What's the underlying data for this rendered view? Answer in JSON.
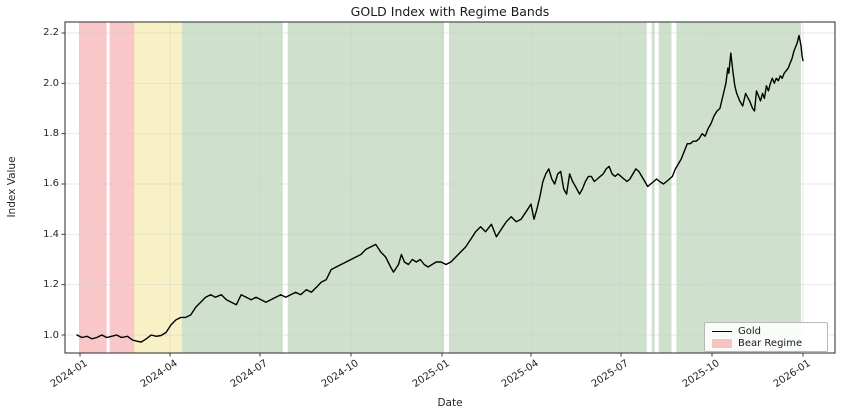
{
  "figure": {
    "title": "GOLD Index with Regime Bands",
    "xlabel": "Date",
    "ylabel": "Index Value"
  },
  "legend": {
    "items": [
      {
        "label": "Gold",
        "swatch": "line",
        "color": "#000000"
      },
      {
        "label": "Bear Regime",
        "swatch": "patch",
        "color": "#f6c2c2"
      }
    ]
  },
  "axes": {
    "x_tick_labels": [
      "2024-01",
      "2024-04",
      "2024-07",
      "2024-10",
      "2025-01",
      "2025-04",
      "2025-07",
      "2025-10",
      "2026-01"
    ],
    "y_tick_labels": [
      "1.0",
      "1.2",
      "1.4",
      "1.6",
      "1.8",
      "2.0",
      "2.2"
    ]
  },
  "colors": {
    "background": "#ffffff",
    "bear_band": "#f9c7c7",
    "neutral_band": "#f8f1c6",
    "bull_band": "#cfe1cd",
    "grid": "#c9c9c9",
    "spine": "#3d3d3d",
    "line": "#000000",
    "text": "#262626"
  },
  "chart_data": {
    "type": "line",
    "title": "GOLD Index with Regime Bands",
    "xlabel": "Date",
    "ylabel": "Index Value",
    "grid": true,
    "legend_position": "lower right",
    "xlim": [
      "2023-12-17",
      "2026-02-02"
    ],
    "ylim": [
      0.93,
      2.24
    ],
    "x_ticks": [
      "2024-01",
      "2024-04",
      "2024-07",
      "2024-10",
      "2025-01",
      "2025-04",
      "2025-07",
      "2025-10",
      "2026-01"
    ],
    "y_ticks": [
      1.0,
      1.2,
      1.4,
      1.6,
      1.8,
      2.0,
      2.2
    ],
    "regime_bands": [
      {
        "regime": "bear",
        "start": "2023-12-31",
        "end": "2024-01-28",
        "color": "#f9c7c7"
      },
      {
        "regime": "bear",
        "start": "2024-01-31",
        "end": "2024-02-25",
        "color": "#f9c7c7"
      },
      {
        "regime": "neutral",
        "start": "2024-02-25",
        "end": "2024-04-13",
        "color": "#f8f1c6"
      },
      {
        "regime": "bull",
        "start": "2024-04-13",
        "end": "2024-07-24",
        "color": "#cfe1cd"
      },
      {
        "regime": "bull",
        "start": "2024-07-29",
        "end": "2025-01-03",
        "color": "#cfe1cd"
      },
      {
        "regime": "bull",
        "start": "2025-01-08",
        "end": "2025-07-27",
        "color": "#cfe1cd"
      },
      {
        "regime": "bull",
        "start": "2025-08-01",
        "end": "2025-08-04",
        "color": "#cfe1cd"
      },
      {
        "regime": "bull",
        "start": "2025-08-08",
        "end": "2025-08-21",
        "color": "#cfe1cd"
      },
      {
        "regime": "bull",
        "start": "2025-08-26",
        "end": "2025-12-30",
        "color": "#cfe1cd"
      }
    ],
    "series": [
      {
        "name": "Gold",
        "color": "#000000",
        "points": [
          [
            "2023-12-29",
            1.0
          ],
          [
            "2024-01-03",
            0.99
          ],
          [
            "2024-01-08",
            0.995
          ],
          [
            "2024-01-13",
            0.985
          ],
          [
            "2024-01-18",
            0.99
          ],
          [
            "2024-01-23",
            1.0
          ],
          [
            "2024-01-28",
            0.99
          ],
          [
            "2024-02-02",
            0.995
          ],
          [
            "2024-02-07",
            1.0
          ],
          [
            "2024-02-12",
            0.99
          ],
          [
            "2024-02-18",
            0.995
          ],
          [
            "2024-02-23",
            0.98
          ],
          [
            "2024-02-28",
            0.975
          ],
          [
            "2024-03-03",
            0.972
          ],
          [
            "2024-03-08",
            0.985
          ],
          [
            "2024-03-13",
            1.0
          ],
          [
            "2024-03-18",
            0.995
          ],
          [
            "2024-03-23",
            0.998
          ],
          [
            "2024-03-28",
            1.01
          ],
          [
            "2024-04-02",
            1.04
          ],
          [
            "2024-04-07",
            1.06
          ],
          [
            "2024-04-12",
            1.07
          ],
          [
            "2024-04-17",
            1.07
          ],
          [
            "2024-04-22",
            1.08
          ],
          [
            "2024-04-27",
            1.11
          ],
          [
            "2024-05-02",
            1.13
          ],
          [
            "2024-05-07",
            1.15
          ],
          [
            "2024-05-12",
            1.16
          ],
          [
            "2024-05-17",
            1.15
          ],
          [
            "2024-05-23",
            1.16
          ],
          [
            "2024-05-28",
            1.14
          ],
          [
            "2024-06-02",
            1.13
          ],
          [
            "2024-06-07",
            1.12
          ],
          [
            "2024-06-12",
            1.16
          ],
          [
            "2024-06-17",
            1.15
          ],
          [
            "2024-06-22",
            1.14
          ],
          [
            "2024-06-27",
            1.15
          ],
          [
            "2024-07-02",
            1.14
          ],
          [
            "2024-07-07",
            1.13
          ],
          [
            "2024-07-12",
            1.14
          ],
          [
            "2024-07-17",
            1.15
          ],
          [
            "2024-07-22",
            1.16
          ],
          [
            "2024-07-27",
            1.15
          ],
          [
            "2024-08-01",
            1.16
          ],
          [
            "2024-08-06",
            1.17
          ],
          [
            "2024-08-11",
            1.16
          ],
          [
            "2024-08-17",
            1.18
          ],
          [
            "2024-08-22",
            1.17
          ],
          [
            "2024-08-27",
            1.19
          ],
          [
            "2024-09-01",
            1.21
          ],
          [
            "2024-09-06",
            1.22
          ],
          [
            "2024-09-11",
            1.26
          ],
          [
            "2024-09-16",
            1.27
          ],
          [
            "2024-09-21",
            1.28
          ],
          [
            "2024-09-26",
            1.29
          ],
          [
            "2024-10-01",
            1.3
          ],
          [
            "2024-10-06",
            1.31
          ],
          [
            "2024-10-11",
            1.32
          ],
          [
            "2024-10-16",
            1.34
          ],
          [
            "2024-10-21",
            1.35
          ],
          [
            "2024-10-26",
            1.36
          ],
          [
            "2024-10-31",
            1.33
          ],
          [
            "2024-11-05",
            1.31
          ],
          [
            "2024-11-10",
            1.27
          ],
          [
            "2024-11-13",
            1.25
          ],
          [
            "2024-11-18",
            1.28
          ],
          [
            "2024-11-21",
            1.32
          ],
          [
            "2024-11-24",
            1.29
          ],
          [
            "2024-11-28",
            1.28
          ],
          [
            "2024-12-02",
            1.3
          ],
          [
            "2024-12-06",
            1.29
          ],
          [
            "2024-12-10",
            1.3
          ],
          [
            "2024-12-14",
            1.28
          ],
          [
            "2024-12-18",
            1.27
          ],
          [
            "2024-12-22",
            1.28
          ],
          [
            "2024-12-26",
            1.29
          ],
          [
            "2024-12-31",
            1.29
          ],
          [
            "2025-01-05",
            1.28
          ],
          [
            "2025-01-10",
            1.29
          ],
          [
            "2025-01-15",
            1.31
          ],
          [
            "2025-01-20",
            1.33
          ],
          [
            "2025-01-25",
            1.35
          ],
          [
            "2025-01-30",
            1.38
          ],
          [
            "2025-02-04",
            1.41
          ],
          [
            "2025-02-09",
            1.43
          ],
          [
            "2025-02-14",
            1.41
          ],
          [
            "2025-02-20",
            1.44
          ],
          [
            "2025-02-25",
            1.39
          ],
          [
            "2025-03-02",
            1.42
          ],
          [
            "2025-03-07",
            1.45
          ],
          [
            "2025-03-12",
            1.47
          ],
          [
            "2025-03-17",
            1.45
          ],
          [
            "2025-03-22",
            1.46
          ],
          [
            "2025-03-27",
            1.49
          ],
          [
            "2025-04-01",
            1.52
          ],
          [
            "2025-04-04",
            1.46
          ],
          [
            "2025-04-07",
            1.5
          ],
          [
            "2025-04-10",
            1.55
          ],
          [
            "2025-04-13",
            1.61
          ],
          [
            "2025-04-16",
            1.64
          ],
          [
            "2025-04-19",
            1.66
          ],
          [
            "2025-04-22",
            1.62
          ],
          [
            "2025-04-25",
            1.6
          ],
          [
            "2025-04-28",
            1.64
          ],
          [
            "2025-05-01",
            1.65
          ],
          [
            "2025-05-04",
            1.58
          ],
          [
            "2025-05-07",
            1.56
          ],
          [
            "2025-05-10",
            1.64
          ],
          [
            "2025-05-13",
            1.61
          ],
          [
            "2025-05-16",
            1.59
          ],
          [
            "2025-05-20",
            1.56
          ],
          [
            "2025-05-23",
            1.58
          ],
          [
            "2025-05-26",
            1.61
          ],
          [
            "2025-05-29",
            1.63
          ],
          [
            "2025-06-01",
            1.63
          ],
          [
            "2025-06-04",
            1.61
          ],
          [
            "2025-06-07",
            1.62
          ],
          [
            "2025-06-10",
            1.63
          ],
          [
            "2025-06-13",
            1.64
          ],
          [
            "2025-06-16",
            1.66
          ],
          [
            "2025-06-19",
            1.67
          ],
          [
            "2025-06-22",
            1.64
          ],
          [
            "2025-06-25",
            1.63
          ],
          [
            "2025-06-28",
            1.64
          ],
          [
            "2025-07-01",
            1.63
          ],
          [
            "2025-07-04",
            1.62
          ],
          [
            "2025-07-07",
            1.61
          ],
          [
            "2025-07-10",
            1.62
          ],
          [
            "2025-07-13",
            1.64
          ],
          [
            "2025-07-16",
            1.66
          ],
          [
            "2025-07-19",
            1.65
          ],
          [
            "2025-07-22",
            1.63
          ],
          [
            "2025-07-25",
            1.61
          ],
          [
            "2025-07-28",
            1.59
          ],
          [
            "2025-07-31",
            1.6
          ],
          [
            "2025-08-03",
            1.61
          ],
          [
            "2025-08-06",
            1.62
          ],
          [
            "2025-08-09",
            1.61
          ],
          [
            "2025-08-13",
            1.6
          ],
          [
            "2025-08-16",
            1.61
          ],
          [
            "2025-08-19",
            1.62
          ],
          [
            "2025-08-22",
            1.63
          ],
          [
            "2025-08-25",
            1.66
          ],
          [
            "2025-08-28",
            1.68
          ],
          [
            "2025-08-31",
            1.7
          ],
          [
            "2025-09-03",
            1.73
          ],
          [
            "2025-09-06",
            1.76
          ],
          [
            "2025-09-09",
            1.76
          ],
          [
            "2025-09-12",
            1.77
          ],
          [
            "2025-09-15",
            1.77
          ],
          [
            "2025-09-18",
            1.78
          ],
          [
            "2025-09-21",
            1.8
          ],
          [
            "2025-09-24",
            1.79
          ],
          [
            "2025-09-27",
            1.82
          ],
          [
            "2025-09-30",
            1.84
          ],
          [
            "2025-10-03",
            1.87
          ],
          [
            "2025-10-06",
            1.89
          ],
          [
            "2025-10-09",
            1.9
          ],
          [
            "2025-10-12",
            1.95
          ],
          [
            "2025-10-15",
            2.0
          ],
          [
            "2025-10-17",
            2.06
          ],
          [
            "2025-10-18",
            2.04
          ],
          [
            "2025-10-20",
            2.12
          ],
          [
            "2025-10-22",
            2.05
          ],
          [
            "2025-10-24",
            1.99
          ],
          [
            "2025-10-26",
            1.96
          ],
          [
            "2025-10-29",
            1.93
          ],
          [
            "2025-11-01",
            1.91
          ],
          [
            "2025-11-04",
            1.96
          ],
          [
            "2025-11-08",
            1.93
          ],
          [
            "2025-11-11",
            1.9
          ],
          [
            "2025-11-13",
            1.89
          ],
          [
            "2025-11-15",
            1.97
          ],
          [
            "2025-11-17",
            1.95
          ],
          [
            "2025-11-19",
            1.93
          ],
          [
            "2025-11-21",
            1.96
          ],
          [
            "2025-11-23",
            1.94
          ],
          [
            "2025-11-25",
            1.99
          ],
          [
            "2025-11-27",
            1.97
          ],
          [
            "2025-11-29",
            2.0
          ],
          [
            "2025-12-01",
            2.02
          ],
          [
            "2025-12-03",
            2.0
          ],
          [
            "2025-12-05",
            2.02
          ],
          [
            "2025-12-07",
            2.01
          ],
          [
            "2025-12-09",
            2.03
          ],
          [
            "2025-12-11",
            2.02
          ],
          [
            "2025-12-13",
            2.04
          ],
          [
            "2025-12-15",
            2.05
          ],
          [
            "2025-12-17",
            2.06
          ],
          [
            "2025-12-19",
            2.08
          ],
          [
            "2025-12-21",
            2.1
          ],
          [
            "2025-12-23",
            2.13
          ],
          [
            "2025-12-26",
            2.16
          ],
          [
            "2025-12-28",
            2.19
          ],
          [
            "2025-12-30",
            2.15
          ],
          [
            "2025-12-31",
            2.11
          ],
          [
            "2026-01-01",
            2.09
          ]
        ]
      }
    ]
  }
}
